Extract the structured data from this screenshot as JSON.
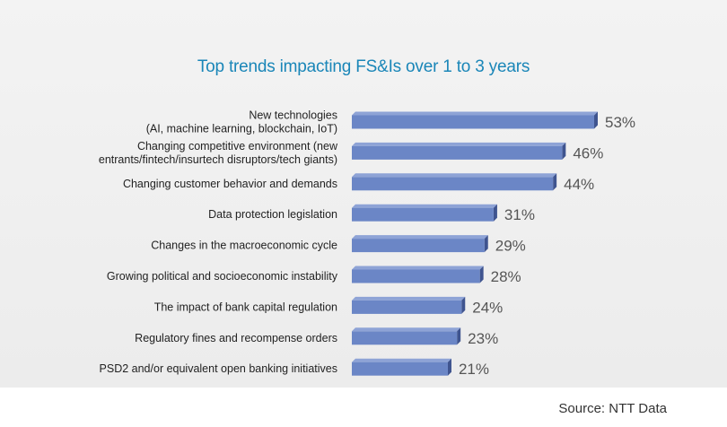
{
  "chart_data": {
    "type": "bar",
    "orientation": "horizontal",
    "title": "Top trends impacting FS&Is over 1 to 3 years",
    "categories": [
      [
        "New technologies",
        "(AI, machine learning, blockchain, IoT)"
      ],
      [
        "Changing competitive environment (new",
        "entrants/fintech/insurtech disruptors/tech giants)"
      ],
      [
        "Changing customer behavior and demands"
      ],
      [
        "Data protection legislation"
      ],
      [
        "Changes in the macroeconomic cycle"
      ],
      [
        "Growing political and socioeconomic instability"
      ],
      [
        "The impact of bank capital regulation"
      ],
      [
        "Regulatory fines and recompense orders"
      ],
      [
        "PSD2 and/or equivalent open banking initiatives"
      ]
    ],
    "values": [
      53,
      46,
      44,
      31,
      29,
      28,
      24,
      23,
      21
    ],
    "value_labels": [
      "53%",
      "46%",
      "44%",
      "31%",
      "29%",
      "28%",
      "24%",
      "23%",
      "21%"
    ],
    "unit": "%",
    "xlim": [
      0,
      53
    ],
    "colors": {
      "bar": "#6b86c6",
      "bar_dark": "#3f548f",
      "title": "#1a86b8"
    }
  },
  "source": "Source: NTT Data"
}
